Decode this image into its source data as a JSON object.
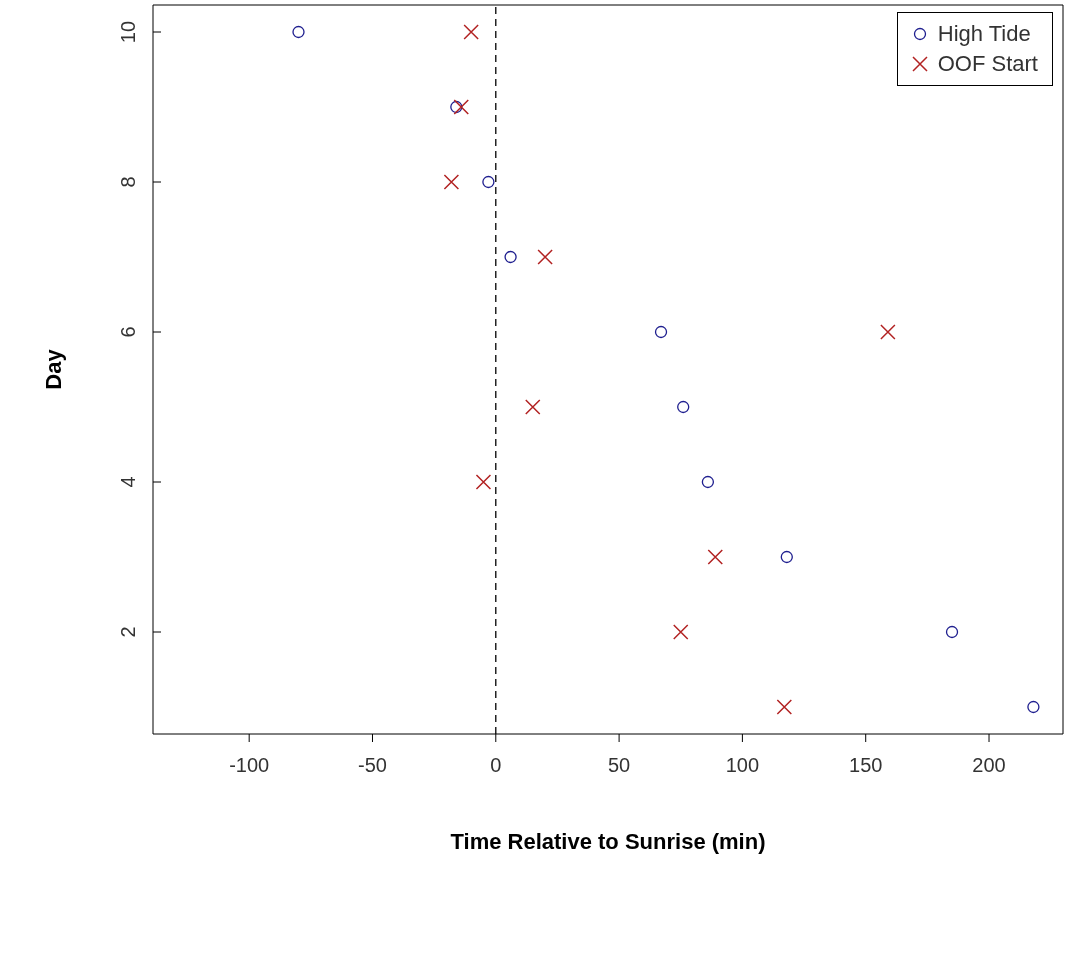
{
  "chart_data": {
    "type": "scatter",
    "xlabel": "Time Relative to Sunrise (min)",
    "ylabel": "Day",
    "xlim": [
      -139,
      230
    ],
    "xticks": [
      -100,
      -50,
      0,
      50,
      100,
      150,
      200
    ],
    "ylim": [
      0.64,
      10.36
    ],
    "yticks": [
      2,
      4,
      6,
      8,
      10
    ],
    "grid": false,
    "legend": "top right",
    "ref_lines": [
      {
        "axis": "x",
        "value": 0,
        "line_style": "dashed",
        "color": "#000000"
      }
    ],
    "series": [
      {
        "name": "High Tide",
        "color": "#1f1f8f",
        "marker": "circle",
        "x": [
          -80,
          -16,
          -3,
          6,
          67,
          76,
          86,
          118,
          185,
          218
        ],
        "values": [
          10,
          9,
          8,
          7,
          6,
          5,
          4,
          3,
          2,
          1
        ]
      },
      {
        "name": "OOF Start",
        "color": "#b22222",
        "marker": "cross",
        "x": [
          -10,
          -14,
          -18,
          20,
          159,
          15,
          -5,
          89,
          75,
          117
        ],
        "values": [
          10,
          9,
          8,
          7,
          6,
          5,
          4,
          3,
          2,
          1
        ]
      }
    ]
  }
}
